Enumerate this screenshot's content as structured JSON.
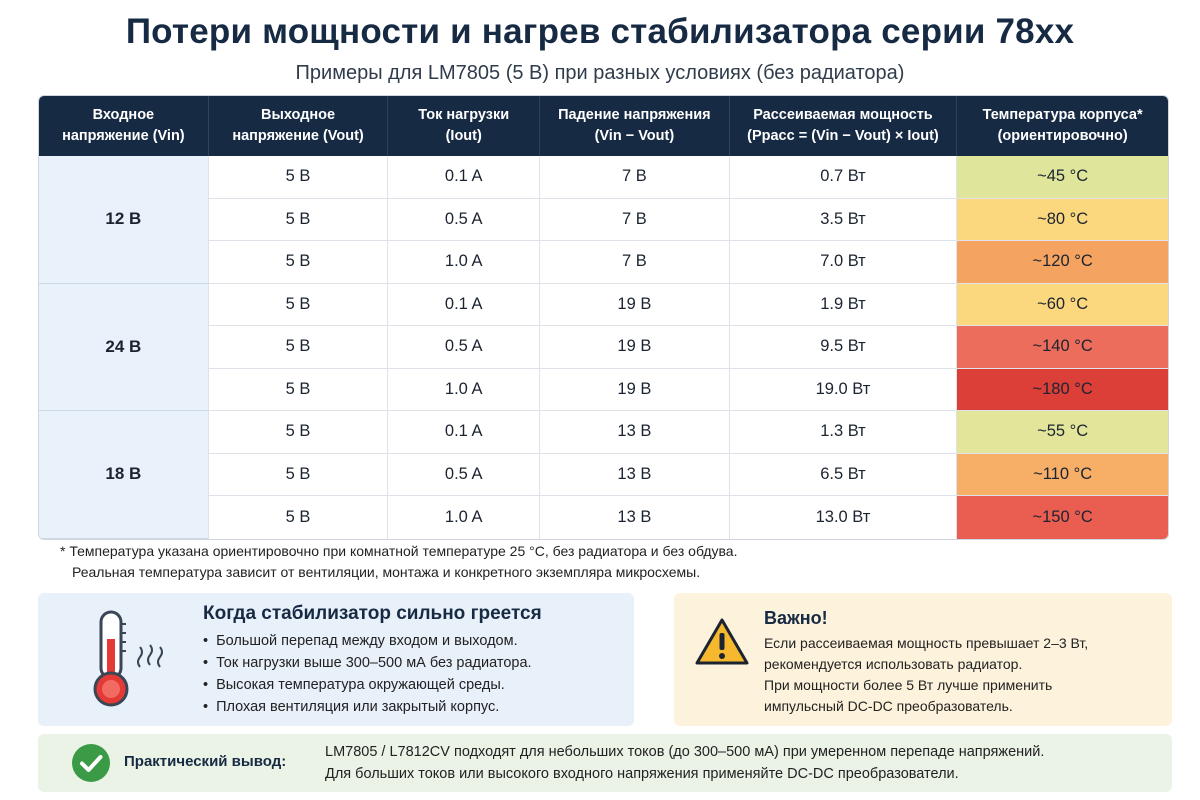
{
  "header": {
    "title": "Потери мощности и нагрев стабилизатора серии 78xx",
    "subtitle": "Примеры для LM7805 (5 В) при разных условиях (без радиатора)"
  },
  "table": {
    "columns": [
      {
        "line1": "Входное",
        "line2": "напряжение (Vin)"
      },
      {
        "line1": "Выходное",
        "line2": "напряжение (Vout)"
      },
      {
        "line1": "Ток нагрузки",
        "line2": "(Iout)"
      },
      {
        "line1": "Падение напряжения",
        "line2": "(Vin − Vout)"
      },
      {
        "line1": "Рассеиваемая мощность",
        "line2": "(Pрасс = (Vin − Vout) × Iout)"
      },
      {
        "line1": "Температура корпуса*",
        "line2": "(ориентировочно)"
      }
    ],
    "groups": [
      {
        "vin": "12 В",
        "rows": [
          {
            "vout": "5 В",
            "iout": "0.1 A",
            "drop": "7 В",
            "power": "0.7 Вт",
            "temp": "~45 °C",
            "color": "#dfe59a"
          },
          {
            "vout": "5 В",
            "iout": "0.5 A",
            "drop": "7 В",
            "power": "3.5 Вт",
            "temp": "~80 °C",
            "color": "#fbd77d"
          },
          {
            "vout": "5 В",
            "iout": "1.0 A",
            "drop": "7 В",
            "power": "7.0 Вт",
            "temp": "~120 °C",
            "color": "#f5a361"
          }
        ]
      },
      {
        "vin": "24 В",
        "rows": [
          {
            "vout": "5 В",
            "iout": "0.1 A",
            "drop": "19 В",
            "power": "1.9 Вт",
            "temp": "~60 °C",
            "color": "#fbd77d"
          },
          {
            "vout": "5 В",
            "iout": "0.5 A",
            "drop": "19 В",
            "power": "9.5 Вт",
            "temp": "~140 °C",
            "color": "#ec6d5c"
          },
          {
            "vout": "5 В",
            "iout": "1.0 A",
            "drop": "19 В",
            "power": "19.0 Вт",
            "temp": "~180 °C",
            "color": "#dc3f37"
          }
        ]
      },
      {
        "vin": "18 В",
        "rows": [
          {
            "vout": "5 В",
            "iout": "0.1 A",
            "drop": "13 В",
            "power": "1.3 Вт",
            "temp": "~55 °C",
            "color": "#e3e69a"
          },
          {
            "vout": "5 В",
            "iout": "0.5 A",
            "drop": "13 В",
            "power": "6.5 Вт",
            "temp": "~110 °C",
            "color": "#f7ae66"
          },
          {
            "vout": "5 В",
            "iout": "1.0 A",
            "drop": "13 В",
            "power": "13.0 Вт",
            "temp": "~150 °C",
            "color": "#ea5e52"
          }
        ]
      }
    ]
  },
  "footnote": {
    "line1": "* Температура указана ориентировочно при комнатной температуре 25 °C, без радиатора и без обдува.",
    "line2": "Реальная температура зависит от вентиляции, монтажа и конкретного экземпляра микросхемы."
  },
  "hot_box": {
    "title": "Когда стабилизатор сильно греется",
    "items": [
      "Большой перепад между входом и выходом.",
      "Ток нагрузки выше 300–500 мА без радиатора.",
      "Высокая температура окружающей среды.",
      "Плохая вентиляция или закрытый корпус."
    ],
    "icon": "thermometer-icon",
    "color": "#e53935"
  },
  "warn_box": {
    "title": "Важно!",
    "lines": [
      "Если рассеиваемая мощность превышает 2–3 Вт,",
      "рекомендуется использовать радиатор.",
      "При мощности более 5 Вт лучше применить",
      "импульсный DC-DC преобразователь."
    ],
    "icon": "warning-icon",
    "color": "#f5b82e"
  },
  "conclusion": {
    "label": "Практический вывод:",
    "line1": "LM7805 / L7812CV подходят для небольших токов (до 300–500 мА) при умеренном перепаде напряжений.",
    "line2": "Для больших токов или высокого входного напряжения применяйте DC-DC преобразователи.",
    "icon": "check-circle-icon",
    "color": "#3a9a46"
  }
}
